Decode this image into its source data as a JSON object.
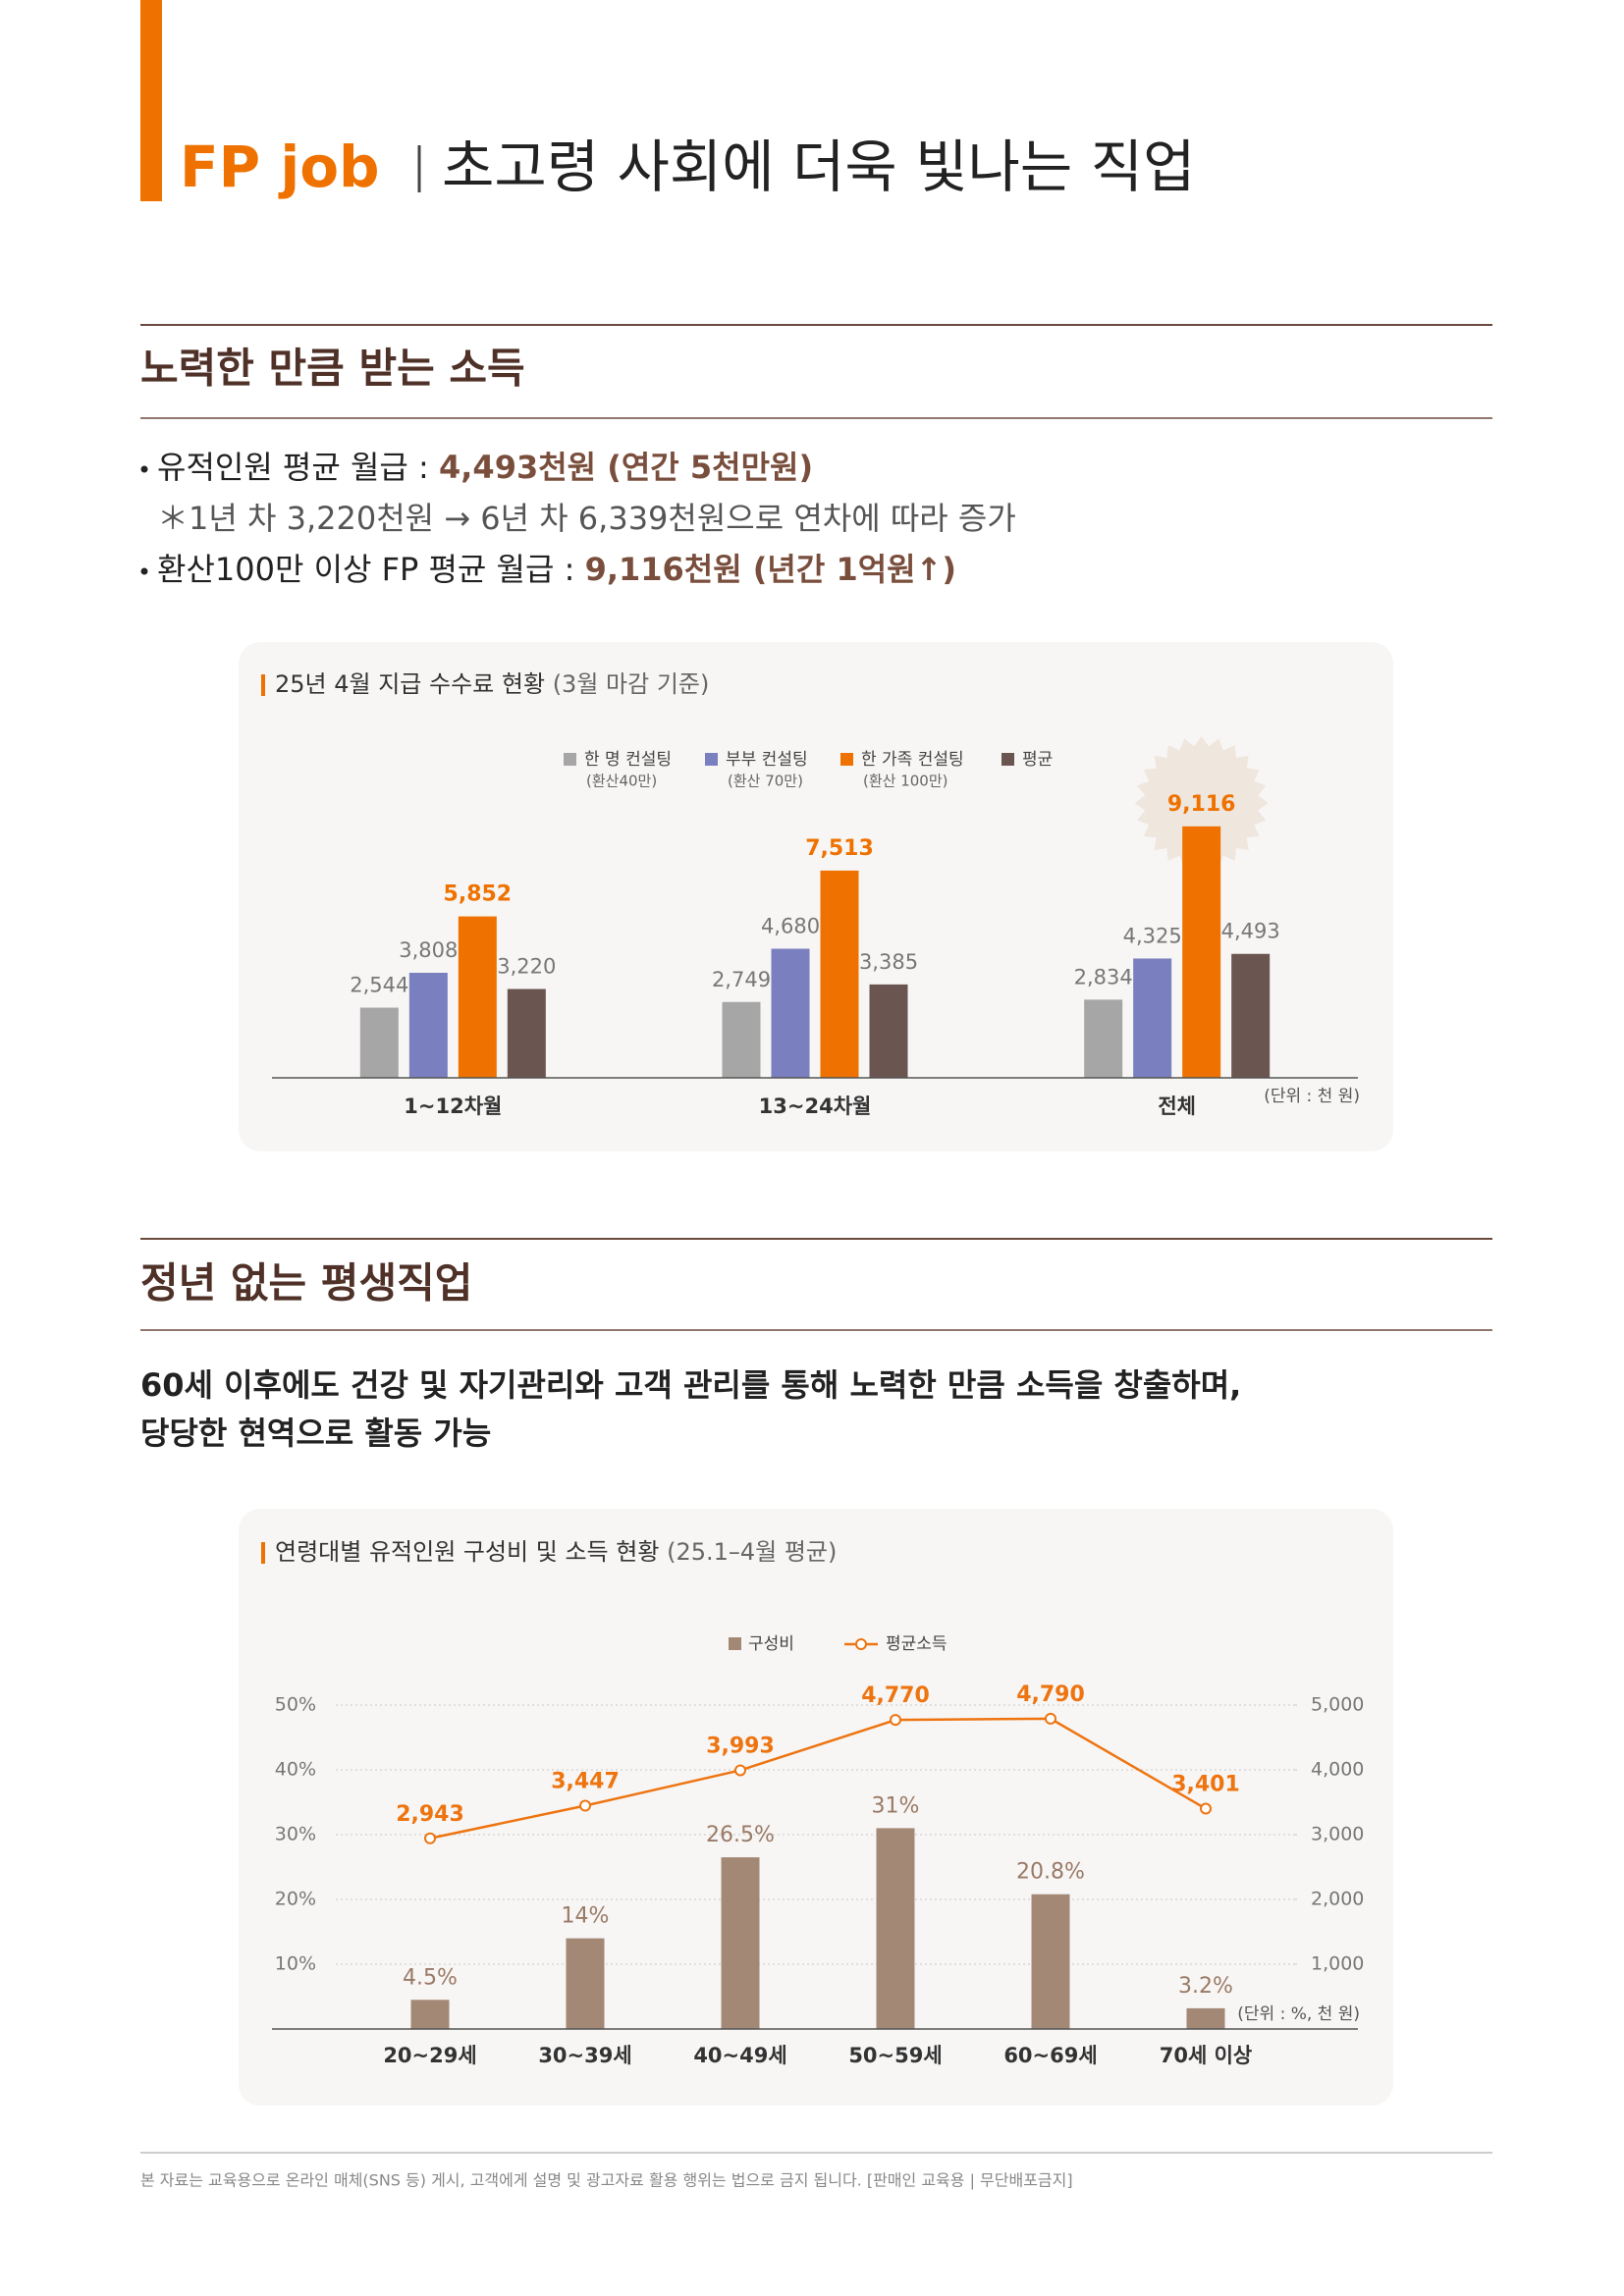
{
  "header": {
    "brand": "FP job",
    "title": "초고령 사회에 더욱 빛나는 직업"
  },
  "sections": [
    {
      "heading": "노력한 만큼 받는 소득",
      "lines": [
        [
          "유적인원 평균 월급 : ",
          "4,493천원 (연간 5천만원)"
        ],
        [
          "＊1년 차 3,220천원 → 6년 차 6,339천원으로 연차에 따라 증가"
        ],
        [
          "환산100만 이상 FP 평균 월급 : ",
          "9,116천원 (년간 1억원↑)"
        ]
      ]
    },
    {
      "heading": "정년 없는 평생직업",
      "lines": [
        [
          "60세 이후에도 건강 및 자기관리와 고객 관리를 통해 노력한 만큼 소득을 창출하며,"
        ],
        [
          "당당한 현역으로 활동 가능"
        ]
      ]
    }
  ],
  "chart_data": [
    {
      "type": "bar",
      "title": "25년 4월 지급 수수료 현황",
      "subtitle": "(3월 마감 기준)",
      "unit": "(단위 : 천 원)",
      "categories": [
        "1~12차월",
        "13~24차월",
        "전체"
      ],
      "ylim": [
        0,
        10000
      ],
      "series": [
        {
          "name": "한 명 컨설팅",
          "note": "(환산40만)",
          "color": "#a6a6a6",
          "values": [
            2544,
            2749,
            2834
          ],
          "value_labels": [
            "2,544",
            "2,749",
            "2,834"
          ]
        },
        {
          "name": "부부 컨설팅",
          "note": "(환산 70만)",
          "color": "#7a7fbf",
          "values": [
            3808,
            4680,
            4325
          ],
          "value_labels": [
            "3,808",
            "4,680",
            "4,325"
          ]
        },
        {
          "name": "한 가족 컨설팅",
          "note": "(환산 100만)",
          "color": "#ef7200",
          "values": [
            5852,
            7513,
            9116
          ],
          "value_labels": [
            "5,852",
            "7,513",
            "9,116"
          ]
        },
        {
          "name": "평균",
          "color": "#6b5550",
          "values": [
            3220,
            3385,
            4493
          ],
          "value_labels": [
            "3,220",
            "3,385",
            "4,493"
          ]
        }
      ]
    },
    {
      "type": "combo",
      "title": "연령대별 유적인원 구성비 및 소득 현황",
      "subtitle": "(25.1–4월 평균)",
      "unit": "(단위 : %, 천 원)",
      "categories": [
        "20~29세",
        "30~39세",
        "40~49세",
        "50~59세",
        "60~69세",
        "70세 이상"
      ],
      "ylim": [
        0,
        50
      ],
      "yticks": [
        {
          "value": 10,
          "label": "10%"
        },
        {
          "value": 20,
          "label": "20%"
        },
        {
          "value": 30,
          "label": "30%"
        },
        {
          "value": 40,
          "label": "40%"
        },
        {
          "value": 50,
          "label": "50%"
        }
      ],
      "y2lim": [
        0,
        5000
      ],
      "y2ticks": [
        {
          "value": 1000,
          "label": "1,000"
        },
        {
          "value": 2000,
          "label": "2,000"
        },
        {
          "value": 3000,
          "label": "3,000"
        },
        {
          "value": 4000,
          "label": "4,000"
        },
        {
          "value": 5000,
          "label": "5,000"
        }
      ],
      "grid": true,
      "series": [
        {
          "name": "구성비",
          "type": "bar",
          "color": "#a38876",
          "values": [
            4.5,
            14,
            26.5,
            31,
            20.8,
            3.2
          ],
          "value_labels": [
            "4.5%",
            "14%",
            "26.5%",
            "31%",
            "20.8%",
            "3.2%"
          ]
        },
        {
          "name": "평균소득",
          "type": "line",
          "axis": "y2",
          "color": "#ee7410",
          "values": [
            2943,
            3447,
            3993,
            4770,
            4790,
            3401
          ],
          "value_labels": [
            "2,943",
            "3,447",
            "3,993",
            "4,770",
            "4,790",
            "3,401"
          ]
        }
      ]
    }
  ],
  "footer": "본 자료는 교육용으로 온라인 매체(SNS 등) 게시, 고객에게 설명 및 광고자료 활용 행위는 법으로 금지 됩니다. [판매인 교육용 | 무단배포금지]"
}
